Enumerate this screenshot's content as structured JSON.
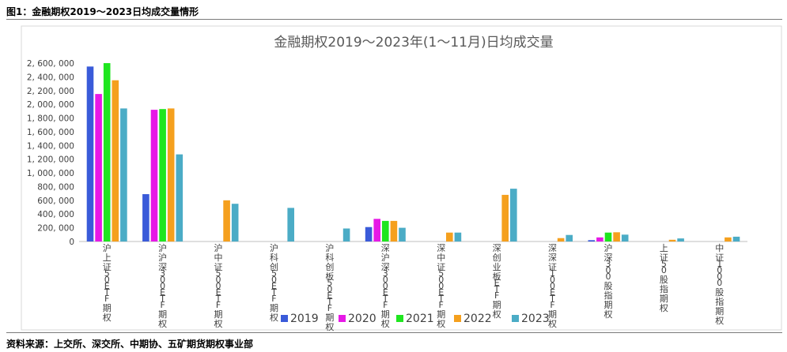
{
  "figure_caption": "图1：金融期权2019～2023日均成交量情形",
  "source_note": "资料来源：上交所、深交所、中期协、五矿期货期权事业部",
  "chart_data": {
    "type": "bar",
    "title": "金融期权2019～2023年(1～11月)日均成交量",
    "xlabel": "",
    "ylabel": "",
    "ylim": [
      0,
      2600000
    ],
    "yticks": [
      0,
      200000,
      400000,
      600000,
      800000,
      1000000,
      1200000,
      1400000,
      1600000,
      1800000,
      2000000,
      2200000,
      2400000,
      2600000
    ],
    "ytick_labels": [
      "0",
      "200, 000",
      "400, 000",
      "600, 000",
      "800, 000",
      "1, 000, 000",
      "1, 200, 000",
      "1, 400, 000",
      "1, 600, 000",
      "1, 800, 000",
      "2, 000, 000",
      "2, 200, 000",
      "2, 400, 000",
      "2, 600, 000"
    ],
    "grid": false,
    "legend_position": "bottom",
    "categories": [
      "沪上证50ETF期权",
      "沪沪深300ETF期权",
      "沪中证500ETF期权",
      "沪科创50ETF期权",
      "沪科创板50ETF期权",
      "深沪深300ETF期权",
      "深中证500ETF期权",
      "深创业板ETF期权",
      "深深证100ETF期权",
      "沪深300股指期权",
      "上证50股指期权",
      "中证1000股指期权"
    ],
    "series": [
      {
        "name": "2019",
        "color": "#3a5bd9",
        "values": [
          2550000,
          690000,
          null,
          null,
          null,
          210000,
          null,
          null,
          null,
          20000,
          null,
          null
        ]
      },
      {
        "name": "2020",
        "color": "#e619e6",
        "values": [
          2150000,
          1920000,
          null,
          null,
          null,
          330000,
          null,
          null,
          null,
          60000,
          null,
          null
        ]
      },
      {
        "name": "2021",
        "color": "#1fe61f",
        "values": [
          2600000,
          1930000,
          null,
          null,
          null,
          300000,
          null,
          null,
          null,
          130000,
          null,
          null
        ]
      },
      {
        "name": "2022",
        "color": "#f5a01e",
        "values": [
          2350000,
          1940000,
          600000,
          null,
          null,
          300000,
          130000,
          680000,
          50000,
          135000,
          25000,
          60000
        ]
      },
      {
        "name": "2023",
        "color": "#4bacc6",
        "values": [
          1940000,
          1270000,
          550000,
          490000,
          190000,
          200000,
          130000,
          770000,
          95000,
          100000,
          45000,
          70000
        ]
      }
    ]
  }
}
